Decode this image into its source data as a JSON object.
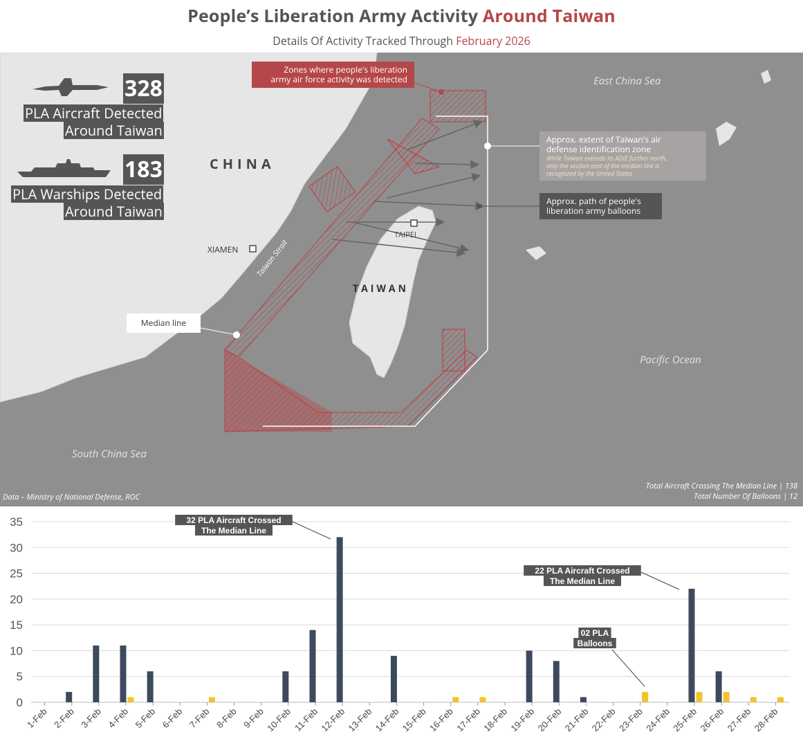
{
  "header": {
    "title_main": "People’s Liberation Army Activity ",
    "title_accent": "Around Taiwan",
    "subtitle_main": "Details Of Activity Tracked Through ",
    "subtitle_accent": "February 2026"
  },
  "stats": {
    "aircraft_count": "328",
    "aircraft_label_1": "PLA Aircraft Detected",
    "aircraft_label_2": "Around Taiwan",
    "warship_count": "183",
    "warship_label_1": "PLA Warships Detected",
    "warship_label_2": "Around Taiwan",
    "aircraft_icon": "fighter-jet-icon",
    "warship_icon": "warship-icon"
  },
  "map": {
    "china": "CHINA",
    "taiwan": "TAIWAN",
    "xiamen": "XIAMEN",
    "taipei": "TAIPEI",
    "strait": "Taiwan Strait",
    "east_china_sea": "East China Sea",
    "pacific_ocean": "Pacific Ocean",
    "south_china_sea": "South China Sea",
    "median_line": "Median line",
    "zones_callout_1": "Zones where people's liberation",
    "zones_callout_2": "army air force activity was detected",
    "adiz_callout_1": "Approx. extent of Taiwan's air",
    "adiz_callout_2": "defense identification zone",
    "adiz_note_1": "While Taiwan extends its ADIZ further north,",
    "adiz_note_2": "only the section east of the median line is",
    "adiz_note_3": "recognized by the United States",
    "balloon_callout_1": "Approx. path of people's",
    "balloon_callout_2": "liberation army balloons",
    "source": "Data – Ministry of National Defense, ROC",
    "total_aircraft": "Total Aircraft Crossing The Median Line | 138",
    "total_balloons": "Total Number Of Balloons | 12"
  },
  "colors": {
    "accent": "#b5474a",
    "zone_red": "#c0393b",
    "aircraft_bar": "#3d4a5e",
    "balloon_bar": "#f2c230",
    "map_sea": "#8f8f8f",
    "map_land": "#e6e6e6"
  },
  "chart_data": {
    "type": "bar",
    "categories": [
      "1-Feb",
      "2-Feb",
      "3-Feb",
      "4-Feb",
      "5-Feb",
      "6-Feb",
      "7-Feb",
      "8-Feb",
      "9-Feb",
      "10-Feb",
      "11-Feb",
      "12-Feb",
      "13-Feb",
      "14-Feb",
      "15-Feb",
      "16-Feb",
      "17-Feb",
      "18-Feb",
      "19-Feb",
      "20-Feb",
      "21-Feb",
      "22-Feb",
      "23-Feb",
      "24-Feb",
      "25-Feb",
      "26-Feb",
      "27-Feb",
      "28-Feb"
    ],
    "series": [
      {
        "values": [
          0,
          2,
          11,
          11,
          6,
          0,
          0,
          0,
          0,
          6,
          14,
          32,
          0,
          9,
          0,
          0,
          0,
          0,
          10,
          8,
          1,
          0,
          0,
          0,
          22,
          6,
          0,
          0
        ]
      },
      {
        "values": [
          0,
          0,
          0,
          1,
          0,
          0,
          1,
          0,
          0,
          0,
          0,
          0,
          0,
          0,
          0,
          1,
          1,
          0,
          0,
          0,
          0,
          0,
          2,
          0,
          2,
          2,
          1,
          1
        ]
      }
    ],
    "ylim": [
      0,
      35
    ],
    "yticks": [
      0,
      5,
      10,
      15,
      20,
      25,
      30,
      35
    ],
    "grid": true,
    "annotations": [
      {
        "lines": [
          "32 PLA Aircraft Crossed",
          "The Median Line"
        ],
        "category": "12-Feb",
        "series": 0
      },
      {
        "lines": [
          "22 PLA Aircraft Crossed",
          "The Median Line"
        ],
        "category": "25-Feb",
        "series": 0
      },
      {
        "lines": [
          "02 PLA",
          "Balloons"
        ],
        "category": "23-Feb",
        "series": 1
      }
    ]
  }
}
